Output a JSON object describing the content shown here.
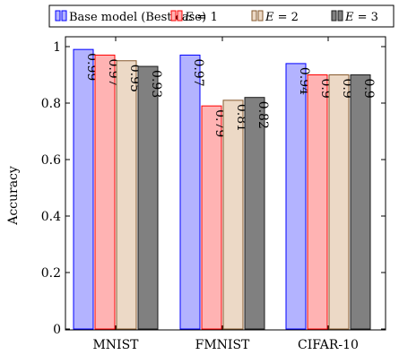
{
  "chart_data": {
    "type": "bar",
    "categories": [
      "MNIST",
      "FMNIST",
      "CIFAR-10"
    ],
    "series": [
      {
        "name": "Base model (Best case)",
        "values": [
          0.99,
          0.97,
          0.94
        ],
        "fill": "#b3b3ff",
        "stroke": "#0000ff"
      },
      {
        "name": "E = 1",
        "values": [
          0.97,
          0.79,
          0.9
        ],
        "fill": "#ffb3b3",
        "stroke": "#ff0000"
      },
      {
        "name": "E = 2",
        "values": [
          0.95,
          0.81,
          0.9
        ],
        "fill": "#ecd9c6",
        "stroke": "#86592d"
      },
      {
        "name": "E = 3",
        "values": [
          0.93,
          0.82,
          0.9
        ],
        "fill": "#808080",
        "stroke": "#1a1a1a"
      }
    ],
    "legend_labels": [
      {
        "prefix": "",
        "text": "Base model (Best case)"
      },
      {
        "prefix": "E",
        "text": " = 1"
      },
      {
        "prefix": "E",
        "text": " = 2"
      },
      {
        "prefix": "E",
        "text": " = 3"
      }
    ],
    "data_labels": [
      [
        "0.99",
        "0.97",
        "0.94"
      ],
      [
        "0.97",
        "0.79",
        "0.9"
      ],
      [
        "0.95",
        "0.81",
        "0.9"
      ],
      [
        "0.93",
        "0.82",
        "0.9"
      ]
    ],
    "y_ticks": [
      0,
      0.2,
      0.4,
      0.6,
      0.8,
      1
    ],
    "y_tick_labels": [
      "0",
      "0.2",
      "0.4",
      "0.6",
      "0.8",
      "1"
    ],
    "ylim": [
      0,
      1
    ],
    "xlabel": "",
    "ylabel": "Accuracy",
    "title": "",
    "legend_position": "top",
    "grid": false
  }
}
